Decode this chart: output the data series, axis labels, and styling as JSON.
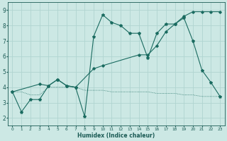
{
  "title": "",
  "xlabel": "Humidex (Indice chaleur)",
  "bg_color": "#cce8e4",
  "grid_color": "#b0d4d0",
  "line_color": "#1a6b60",
  "xlim": [
    -0.5,
    23.5
  ],
  "ylim": [
    1.5,
    9.5
  ],
  "xticks": [
    0,
    1,
    2,
    3,
    4,
    5,
    6,
    7,
    8,
    9,
    10,
    11,
    12,
    13,
    14,
    15,
    16,
    17,
    18,
    19,
    20,
    21,
    22,
    23
  ],
  "yticks": [
    2,
    3,
    4,
    5,
    6,
    7,
    8,
    9
  ],
  "line1_x": [
    0,
    1,
    2,
    3,
    4,
    5,
    6,
    7,
    8,
    9,
    10,
    11,
    12,
    13,
    14,
    15,
    16,
    17,
    18,
    19,
    20,
    21,
    22,
    23
  ],
  "line1_y": [
    3.7,
    2.4,
    3.2,
    3.2,
    4.1,
    4.5,
    4.1,
    4.0,
    2.1,
    7.3,
    8.7,
    8.2,
    8.0,
    7.5,
    7.5,
    5.9,
    7.5,
    8.1,
    8.1,
    8.5,
    7.0,
    5.1,
    4.3,
    3.4
  ],
  "line2_x": [
    0,
    3,
    4,
    5,
    6,
    7,
    9,
    10,
    14,
    15,
    16,
    17,
    18,
    19,
    20,
    21,
    22,
    23
  ],
  "line2_y": [
    3.7,
    4.2,
    4.1,
    4.5,
    4.1,
    4.0,
    5.2,
    5.4,
    6.1,
    6.1,
    6.7,
    7.6,
    8.1,
    8.6,
    8.9,
    8.9,
    8.9,
    8.9
  ],
  "line3_x": [
    0,
    1,
    2,
    3,
    4,
    5,
    6,
    7,
    8,
    9,
    10,
    11,
    12,
    13,
    14,
    15,
    16,
    17,
    18,
    19,
    20,
    21,
    22,
    23
  ],
  "line3_y": [
    3.7,
    3.7,
    3.5,
    3.5,
    4.0,
    4.0,
    4.0,
    4.0,
    3.8,
    3.8,
    3.8,
    3.7,
    3.7,
    3.7,
    3.7,
    3.7,
    3.6,
    3.6,
    3.6,
    3.5,
    3.5,
    3.4,
    3.4,
    3.4
  ]
}
